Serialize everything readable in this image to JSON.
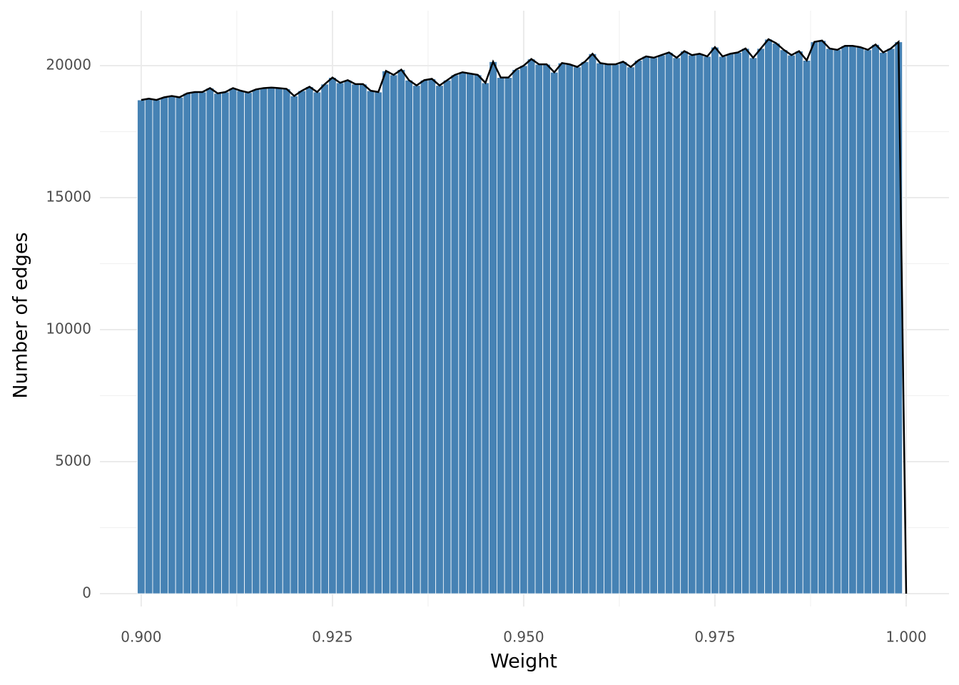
{
  "chart_data": {
    "type": "histogram",
    "bins": [
      0.8995,
      0.9005,
      0.9015,
      0.9025,
      0.9035,
      0.9045,
      0.9055,
      0.9065,
      0.9075,
      0.9085,
      0.9095,
      0.9105,
      0.9115,
      0.9125,
      0.9135,
      0.9145,
      0.9155,
      0.9165,
      0.9175,
      0.9185,
      0.9195,
      0.9205,
      0.9215,
      0.9225,
      0.9235,
      0.9245,
      0.9255,
      0.9265,
      0.9275,
      0.9285,
      0.9295,
      0.9305,
      0.9315,
      0.9325,
      0.9335,
      0.9345,
      0.9355,
      0.9365,
      0.9375,
      0.9385,
      0.9395,
      0.9405,
      0.9415,
      0.9425,
      0.9435,
      0.9445,
      0.9455,
      0.9465,
      0.9475,
      0.9485,
      0.9495,
      0.9505,
      0.9515,
      0.9525,
      0.9535,
      0.9545,
      0.9555,
      0.9565,
      0.9575,
      0.9585,
      0.9595,
      0.9605,
      0.9615,
      0.9625,
      0.9635,
      0.9645,
      0.9655,
      0.9665,
      0.9675,
      0.9685,
      0.9695,
      0.9705,
      0.9715,
      0.9725,
      0.9735,
      0.9745,
      0.9755,
      0.9765,
      0.9775,
      0.9785,
      0.9795,
      0.9805,
      0.9815,
      0.9825,
      0.9835,
      0.9845,
      0.9855,
      0.9865,
      0.9875,
      0.9885,
      0.9895,
      0.9905,
      0.9915,
      0.9925,
      0.9935,
      0.9945,
      0.9955,
      0.9965,
      0.9975,
      0.9985,
      0.9995
    ],
    "counts": [
      18700,
      18750,
      18700,
      18800,
      18850,
      18800,
      18950,
      19000,
      19000,
      19150,
      18950,
      19000,
      19150,
      19050,
      18980,
      19100,
      19150,
      19170,
      19150,
      19120,
      18850,
      19050,
      19200,
      19000,
      19300,
      19550,
      19350,
      19450,
      19300,
      19300,
      19050,
      19000,
      19800,
      19650,
      19850,
      19450,
      19250,
      19450,
      19500,
      19250,
      19450,
      19650,
      19750,
      19700,
      19650,
      19350,
      20150,
      19550,
      19550,
      19850,
      20000,
      20250,
      20050,
      20050,
      19750,
      20100,
      20050,
      19950,
      20150,
      20450,
      20100,
      20050,
      20050,
      20150,
      19950,
      20200,
      20350,
      20300,
      20400,
      20500,
      20300,
      20550,
      20400,
      20450,
      20350,
      20700,
      20350,
      20450,
      20500,
      20650,
      20300,
      20650,
      21000,
      20850,
      20600,
      20400,
      20550,
      20200,
      20900,
      20950,
      20650,
      20600,
      20750,
      20750,
      20700,
      20600,
      20800,
      20500,
      20650,
      20900
    ],
    "color": "#4682b4",
    "line": {
      "color": "#000000",
      "x": [
        0.9,
        0.901,
        0.902,
        0.903,
        0.904,
        0.905,
        0.906,
        0.907,
        0.908,
        0.909,
        0.91,
        0.911,
        0.912,
        0.913,
        0.914,
        0.915,
        0.916,
        0.917,
        0.918,
        0.919,
        0.92,
        0.921,
        0.922,
        0.923,
        0.924,
        0.925,
        0.926,
        0.927,
        0.928,
        0.929,
        0.93,
        0.931,
        0.932,
        0.933,
        0.934,
        0.935,
        0.936,
        0.937,
        0.938,
        0.939,
        0.94,
        0.941,
        0.942,
        0.943,
        0.944,
        0.945,
        0.946,
        0.947,
        0.948,
        0.949,
        0.95,
        0.951,
        0.952,
        0.953,
        0.954,
        0.955,
        0.956,
        0.957,
        0.958,
        0.959,
        0.96,
        0.961,
        0.962,
        0.963,
        0.964,
        0.965,
        0.966,
        0.967,
        0.968,
        0.969,
        0.97,
        0.971,
        0.972,
        0.973,
        0.974,
        0.975,
        0.976,
        0.977,
        0.978,
        0.979,
        0.98,
        0.981,
        0.982,
        0.983,
        0.984,
        0.985,
        0.986,
        0.987,
        0.988,
        0.989,
        0.99,
        0.991,
        0.992,
        0.993,
        0.994,
        0.995,
        0.996,
        0.997,
        0.998,
        0.999,
        1.0
      ],
      "values": [
        18700,
        18750,
        18700,
        18800,
        18850,
        18800,
        18950,
        19000,
        19000,
        19150,
        18950,
        19000,
        19150,
        19050,
        18980,
        19100,
        19150,
        19170,
        19150,
        19120,
        18850,
        19050,
        19200,
        19000,
        19300,
        19550,
        19350,
        19450,
        19300,
        19300,
        19050,
        19000,
        19800,
        19650,
        19850,
        19450,
        19250,
        19450,
        19500,
        19250,
        19450,
        19650,
        19750,
        19700,
        19650,
        19350,
        20150,
        19550,
        19550,
        19850,
        20000,
        20250,
        20050,
        20050,
        19750,
        20100,
        20050,
        19950,
        20150,
        20450,
        20100,
        20050,
        20050,
        20150,
        19950,
        20200,
        20350,
        20300,
        20400,
        20500,
        20300,
        20550,
        20400,
        20450,
        20350,
        20700,
        20350,
        20450,
        20500,
        20650,
        20300,
        20650,
        21000,
        20850,
        20600,
        20400,
        20550,
        20200,
        20900,
        20950,
        20650,
        20600,
        20750,
        20750,
        20700,
        20600,
        20800,
        20500,
        20650,
        20900,
        0
      ]
    },
    "xlabel": "Weight",
    "ylabel": "Number of edges",
    "xlim": [
      0.8946,
      1.0056
    ],
    "ylim": [
      -486,
      22081
    ],
    "xticks": [
      {
        "value": 0.9,
        "label": "0.900"
      },
      {
        "value": 0.925,
        "label": "0.925"
      },
      {
        "value": 0.95,
        "label": "0.950"
      },
      {
        "value": 0.975,
        "label": "0.975"
      },
      {
        "value": 1.0,
        "label": "1.000"
      }
    ],
    "xminor": [
      0.9125,
      0.9375,
      0.9625,
      0.9875
    ],
    "yticks": [
      0,
      5000,
      10000,
      15000,
      20000
    ],
    "yminor": [
      2500,
      7500,
      12500,
      17500
    ],
    "grid": true
  }
}
